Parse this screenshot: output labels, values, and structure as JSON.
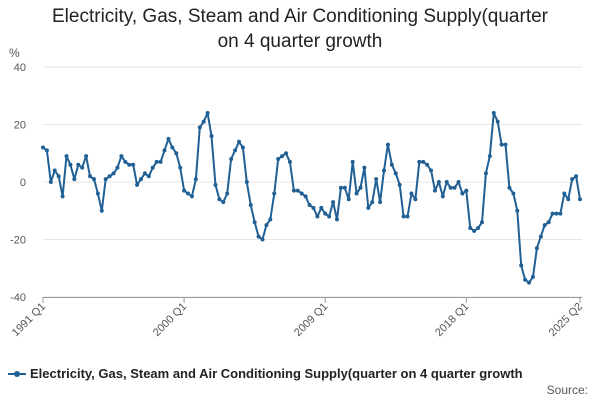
{
  "chart_data": {
    "type": "line",
    "title_line1": "Electricity, Gas, Steam and Air Conditioning Supply(quarter",
    "title_line2": "on 4 quarter growth",
    "ylabel": "%",
    "ylim": [
      -40,
      40
    ],
    "yticks": [
      40,
      20,
      0,
      -20,
      -40
    ],
    "xlabel": "",
    "xtick_labels": [
      {
        "label": "1991 Q1",
        "index": 0
      },
      {
        "label": "2000 Q1",
        "index": 36
      },
      {
        "label": "2009 Q1",
        "index": 72
      },
      {
        "label": "2018 Q1",
        "index": 108
      },
      {
        "label": "2025 Q2",
        "index": 137
      }
    ],
    "grid": true,
    "legend_position": "bottom",
    "series": [
      {
        "name": "Electricity, Gas, Steam and Air Conditioning Supply(quarter on 4 quarter growth",
        "color": "#206095",
        "start": "1991 Q1",
        "end": "2025 Q2",
        "values": [
          12,
          11,
          0,
          4,
          2,
          -5,
          9,
          6,
          1,
          6,
          5,
          9,
          2,
          1,
          -4,
          -10,
          1,
          2,
          3,
          5,
          9,
          7,
          6,
          6,
          -1,
          1,
          3,
          2,
          5,
          7,
          7,
          11,
          15,
          12,
          10,
          5,
          -3,
          -4,
          -5,
          1,
          19,
          21,
          24,
          16,
          -1,
          -6,
          -7,
          -4,
          8,
          11,
          14,
          12,
          0,
          -8,
          -14,
          -19,
          -20,
          -15,
          -13,
          -4,
          8,
          9,
          10,
          7,
          -3,
          -3,
          -4,
          -5,
          -8,
          -9,
          -12,
          -9,
          -11,
          -12,
          -7,
          -13,
          -2,
          -2,
          -6,
          7,
          -4,
          -2,
          5,
          -9,
          -7,
          1,
          -7,
          4,
          13,
          6,
          3,
          -1,
          -12,
          -12,
          -4,
          -6,
          7,
          7,
          6,
          4,
          -3,
          0,
          -5,
          0,
          -2,
          -2,
          0,
          -4,
          -3,
          -16,
          -17,
          -16,
          -14,
          3,
          9,
          24,
          21,
          13,
          13,
          -2,
          -4,
          -10,
          -29,
          -34,
          -35,
          -33,
          -23,
          -19,
          -15,
          -14,
          -11,
          -11,
          -11,
          -4,
          -6,
          1,
          2,
          -6
        ]
      }
    ]
  },
  "legend": {
    "label": "Electricity, Gas, Steam and Air Conditioning Supply(quarter on 4 quarter growth"
  },
  "footer": {
    "source_label": "Source:"
  }
}
